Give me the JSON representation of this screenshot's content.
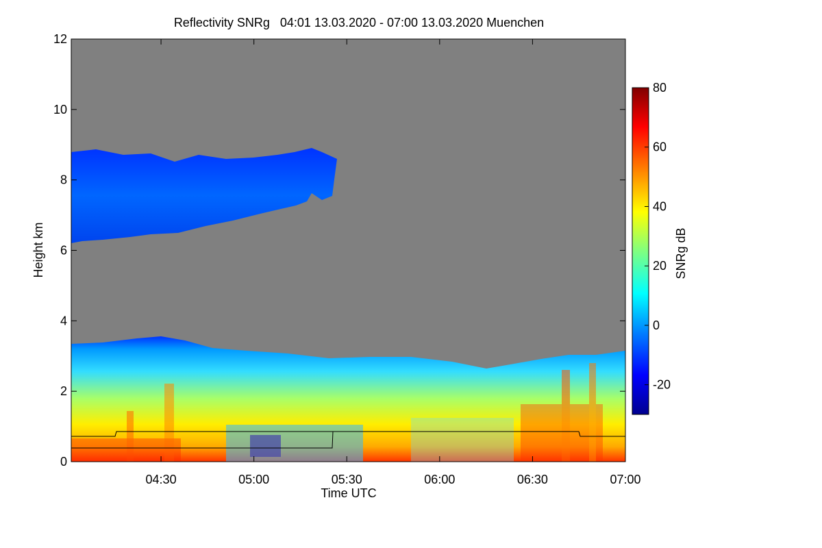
{
  "chart_data": {
    "type": "heatmap",
    "title": "Reflectivity SNRg   04:01 13.03.2020 - 07:00 13.03.2020 Muenchen",
    "xlabel": "Time UTC",
    "ylabel": "Height km",
    "xlim": [
      "04:01",
      "07:00"
    ],
    "ylim": [
      0,
      12
    ],
    "x_ticks": [
      "04:30",
      "05:00",
      "05:30",
      "06:00",
      "06:30",
      "07:00"
    ],
    "y_ticks": [
      0,
      2,
      4,
      6,
      8,
      10,
      12
    ],
    "colorbar": {
      "label": "SNRg dB",
      "range": [
        -30,
        80
      ],
      "ticks": [
        -20,
        0,
        20,
        40,
        60,
        80
      ],
      "colors": [
        "#00008f",
        "#0000ff",
        "#0080ff",
        "#00ffff",
        "#80ff80",
        "#ffff00",
        "#ff8000",
        "#ff0000",
        "#800000"
      ]
    },
    "background_color": "#808080",
    "features": [
      {
        "name": "upper cloud layer",
        "time_start": "04:01",
        "time_end": "05:27",
        "base_km_start": 6.3,
        "base_km_end": 7.5,
        "top_km": 8.6,
        "snr_db": -8
      },
      {
        "name": "lower precipitation layer",
        "time_start": "04:01",
        "time_end": "07:00",
        "top_km": [
          3.3,
          3.5,
          3.2,
          3.0,
          2.9,
          2.7,
          3.0,
          3.2
        ],
        "surface_snr_db_max": 70
      },
      {
        "name": "melting layer line",
        "values_km": [
          0.7,
          0.85,
          0.85,
          0.85,
          0.7
        ]
      },
      {
        "name": "lower reference line",
        "values_km": [
          0.4,
          0.4,
          0.85
        ]
      }
    ]
  }
}
